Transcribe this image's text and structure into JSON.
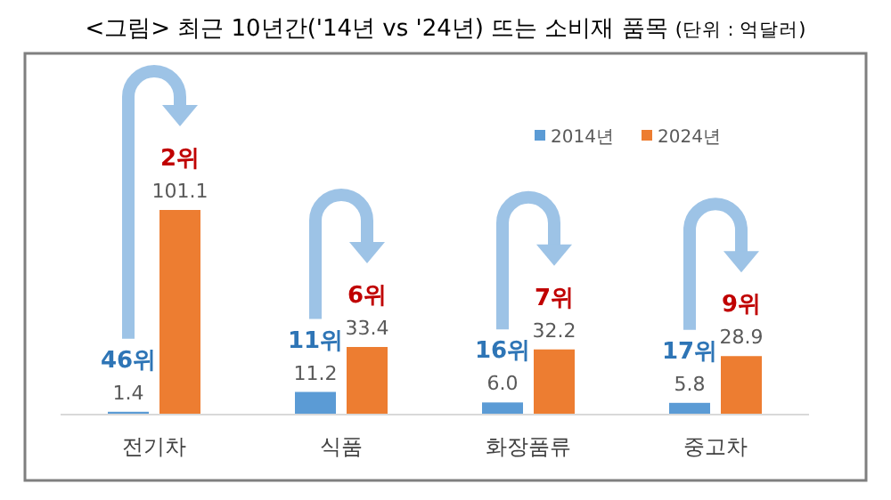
{
  "chart_data": {
    "type": "bar",
    "title": "<그림> 최근 10년간('14년 vs '24년) 뜨는 소비재 품목",
    "subtitle": "(단위 : 억달러)",
    "categories": [
      "전기차",
      "식품",
      "화장품류",
      "중고차"
    ],
    "series": [
      {
        "name": "2014년",
        "color": "#5b9bd5",
        "values": [
          1.4,
          11.2,
          6.0,
          5.8
        ],
        "value_labels": [
          "1.4",
          "11.2",
          "6.0",
          "5.8"
        ]
      },
      {
        "name": "2024년",
        "color": "#ed7d31",
        "values": [
          101.1,
          33.4,
          32.2,
          28.9
        ],
        "value_labels": [
          "101.1",
          "33.4",
          "32.2",
          "28.9"
        ]
      }
    ],
    "legend": "top right",
    "annotations": [
      {
        "text": "46위",
        "x": "전기차",
        "y": 1.4
      },
      {
        "text": "2위",
        "x": "전기차",
        "y": 101.1
      },
      {
        "text": "11위",
        "x": "식품",
        "y": 11.2
      },
      {
        "text": "6위",
        "x": "식품",
        "y": 33.4
      },
      {
        "text": "16위",
        "x": "화장품류",
        "y": 6.0
      },
      {
        "text": "7위",
        "x": "화장품류",
        "y": 32.2
      },
      {
        "text": "17위",
        "x": "중고차",
        "y": 5.8
      },
      {
        "text": "9위",
        "x": "중고차",
        "y": 28.9
      }
    ]
  }
}
